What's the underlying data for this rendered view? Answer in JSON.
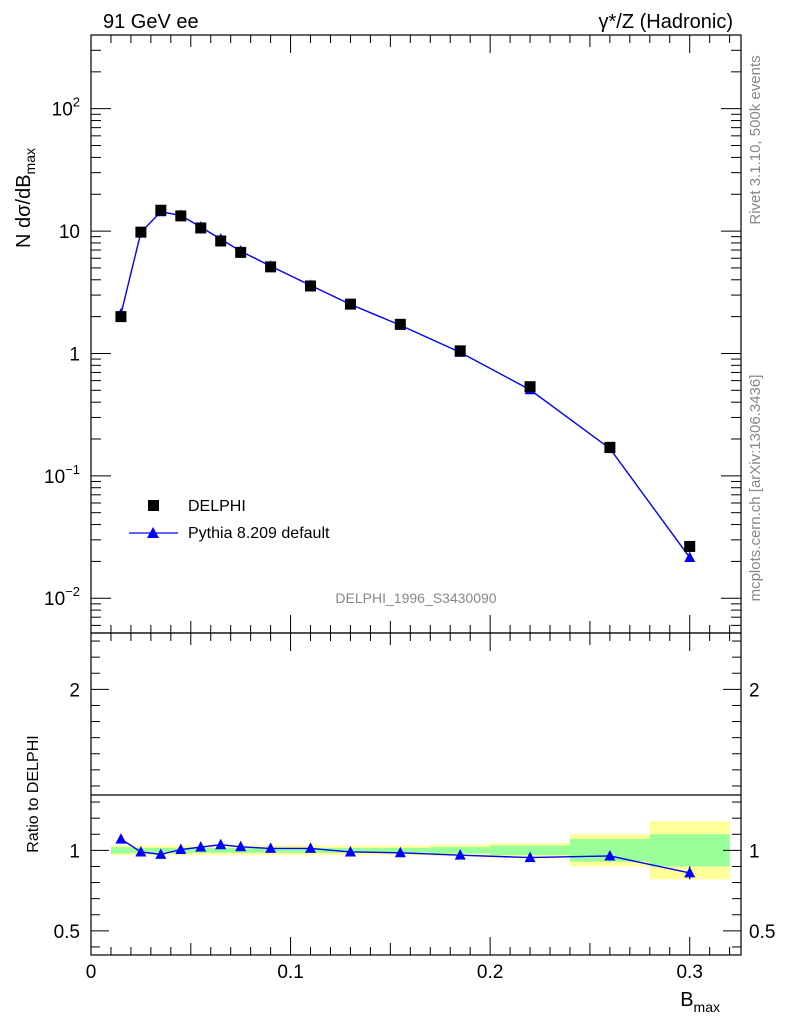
{
  "header": {
    "left_title": "91 GeV ee",
    "right_title": "γ*/Z (Hadronic)"
  },
  "side_text": {
    "rivet": "Rivet 3.1.10,  500k events",
    "mcplots": "mcplots.cern.ch [arXiv:1306.3436]"
  },
  "analysis_id": "DELPHI_1996_S3430090",
  "colors": {
    "data": "#000000",
    "mc": "#0000ff",
    "band_inner": "#99ff99",
    "band_outer": "#ffff99"
  },
  "chart_data": [
    {
      "type": "scatter",
      "name": "main",
      "yscale": "log",
      "xlabel": "B",
      "xlabel_sub": "max",
      "ylabel": "N dσ/dB",
      "ylabel_sub": "max",
      "xlim": [
        0,
        0.3257
      ],
      "ylim": [
        0.0052,
        400
      ],
      "y_tick_labels": [
        {
          "value": 0.01,
          "base": "10",
          "exp": "−2"
        },
        {
          "value": 0.1,
          "base": "10",
          "exp": "−1"
        },
        {
          "value": 1,
          "base": "1",
          "exp": ""
        },
        {
          "value": 10,
          "base": "10",
          "exp": ""
        },
        {
          "value": 100,
          "base": "10",
          "exp": "2"
        }
      ],
      "legend": {
        "position": "bottom-left",
        "data_label": "DELPHI",
        "mc_label": "Pythia 8.209 default"
      },
      "series": [
        {
          "name": "DELPHI",
          "marker": "square",
          "x": [
            0.015,
            0.025,
            0.035,
            0.045,
            0.055,
            0.065,
            0.075,
            0.09,
            0.11,
            0.13,
            0.155,
            0.185,
            0.22,
            0.26,
            0.3
          ],
          "y": [
            2.0,
            9.8,
            14.8,
            13.3,
            10.6,
            8.3,
            6.7,
            5.1,
            3.56,
            2.53,
            1.73,
            1.05,
            0.535,
            0.171,
            0.0265
          ]
        },
        {
          "name": "Pythia 8.209 default",
          "marker": "triangle",
          "x": [
            0.015,
            0.025,
            0.035,
            0.045,
            0.055,
            0.065,
            0.075,
            0.09,
            0.11,
            0.13,
            0.155,
            0.185,
            0.22,
            0.26,
            0.3
          ],
          "y": [
            2.1,
            9.75,
            14.4,
            13.4,
            10.8,
            8.6,
            6.85,
            5.17,
            3.6,
            2.52,
            1.7,
            1.02,
            0.505,
            0.167,
            0.0215
          ]
        }
      ]
    },
    {
      "type": "line",
      "name": "ratio",
      "xlabel": "B",
      "xlabel_sub": "max",
      "ylabel": "Ratio to DELPHI",
      "xlim": [
        0,
        0.3257
      ],
      "ylim": [
        0.35,
        2.35
      ],
      "x_ticks": [
        "0",
        "0.1",
        "0.2",
        "0.3"
      ],
      "x_tick_values": [
        0,
        0.1,
        0.2,
        0.3
      ],
      "y_ticks": [
        "0.5",
        "1",
        "2"
      ],
      "y_tick_values": [
        0.5,
        1,
        2
      ],
      "bands": {
        "x_edges": [
          0.01,
          0.02,
          0.03,
          0.04,
          0.05,
          0.06,
          0.07,
          0.08,
          0.1,
          0.12,
          0.14,
          0.17,
          0.2,
          0.24,
          0.28,
          0.32
        ],
        "inner": [
          0.02,
          0.015,
          0.015,
          0.015,
          0.015,
          0.015,
          0.015,
          0.015,
          0.015,
          0.015,
          0.015,
          0.02,
          0.03,
          0.07,
          0.1
        ],
        "outer": [
          0.03,
          0.03,
          0.03,
          0.03,
          0.03,
          0.03,
          0.03,
          0.03,
          0.03,
          0.03,
          0.03,
          0.035,
          0.045,
          0.1,
          0.18
        ]
      },
      "x": [
        0.015,
        0.025,
        0.035,
        0.045,
        0.055,
        0.065,
        0.075,
        0.09,
        0.11,
        0.13,
        0.155,
        0.185,
        0.22,
        0.26,
        0.3
      ],
      "values": [
        1.07,
        0.99,
        0.975,
        1.005,
        1.02,
        1.035,
        1.022,
        1.012,
        1.012,
        0.99,
        0.985,
        0.97,
        0.955,
        0.965,
        0.86
      ],
      "errors": [
        0,
        0,
        0,
        0,
        0,
        0,
        0,
        0,
        0,
        0,
        0,
        0,
        0,
        0,
        0.04
      ]
    }
  ]
}
